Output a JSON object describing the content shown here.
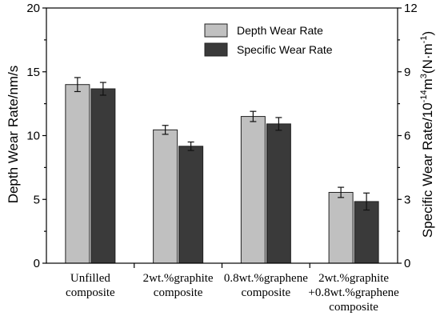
{
  "chart_data": {
    "type": "bar",
    "categories": [
      [
        "Unfilled",
        "composite"
      ],
      [
        "2wt.%graphite",
        "composite"
      ],
      [
        "0.8wt.%graphene",
        "composite"
      ],
      [
        "2wt.%graphite",
        "+0.8wt.%graphene",
        "composite"
      ]
    ],
    "series": [
      {
        "name": "Depth Wear Rate",
        "axis": "left",
        "color": "#c0c0c0",
        "values": [
          14.0,
          10.45,
          11.5,
          5.55
        ],
        "errors": [
          0.55,
          0.35,
          0.4,
          0.4
        ]
      },
      {
        "name": "Specific Wear Rate",
        "axis": "right",
        "color": "#3a3a3a",
        "values": [
          8.2,
          5.5,
          6.55,
          2.9
        ],
        "errors": [
          0.3,
          0.2,
          0.3,
          0.4
        ]
      }
    ],
    "y_left": {
      "label": "Depth Wear Rate/nm/s",
      "lim": [
        0,
        20
      ],
      "ticks": [
        "0",
        "5",
        "10",
        "15",
        "20"
      ]
    },
    "y_right": {
      "label_parts": [
        "Specific Wear Rate/10",
        "-14",
        "m",
        "3",
        "(N·m",
        "-1",
        ")"
      ],
      "lim": [
        0,
        12
      ],
      "ticks": [
        "0",
        "3",
        "6",
        "9",
        "12"
      ]
    },
    "legend_position": "top-right"
  }
}
